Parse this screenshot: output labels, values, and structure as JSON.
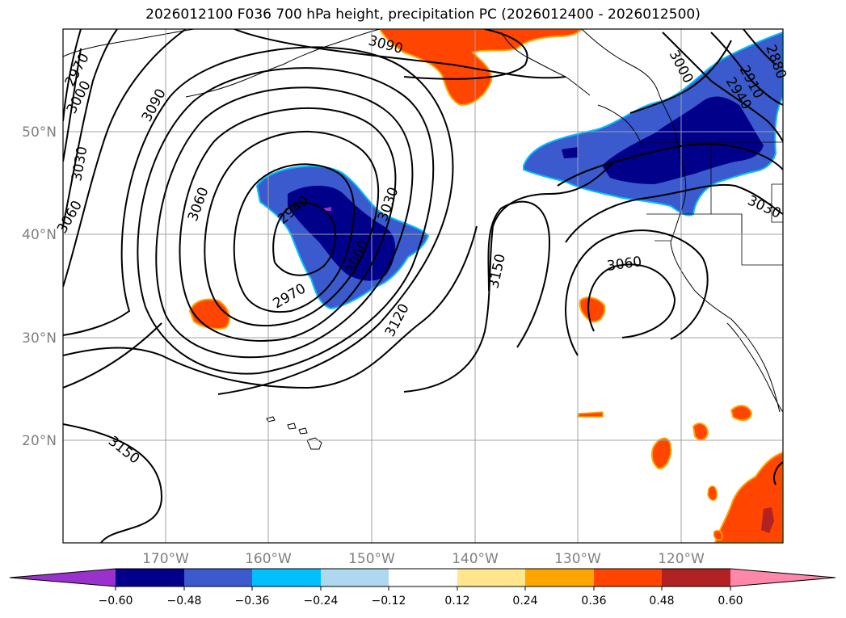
{
  "title": "2026012100 F036 700 hPa height, precipitation PC (2026012400 - 2026012500)",
  "map": {
    "longitude_labels": [
      "170°W",
      "160°W",
      "150°W",
      "140°W",
      "130°W",
      "120°W"
    ],
    "latitude_labels": [
      "50°N",
      "40°N",
      "30°N",
      "20°N"
    ],
    "contour_labels": [
      "3090",
      "2970",
      "3000",
      "3030",
      "3090",
      "3060",
      "3060",
      "3030",
      "3000",
      "2970",
      "2940",
      "3120",
      "3150",
      "3060",
      "3000",
      "2910",
      "2940",
      "2880",
      "3030",
      "3150"
    ]
  },
  "colorbar": {
    "tick_labels": [
      "−0.60",
      "−0.48",
      "−0.36",
      "−0.24",
      "−0.12",
      "0.12",
      "0.24",
      "0.36",
      "0.48",
      "0.60"
    ],
    "colors": [
      "#9932cc",
      "#00008b",
      "#3a5acd",
      "#00bfff",
      "#add8f0",
      "#ffffff",
      "#ffe68c",
      "#ffa500",
      "#ff4500",
      "#b22222",
      "#ff88aa"
    ]
  }
}
